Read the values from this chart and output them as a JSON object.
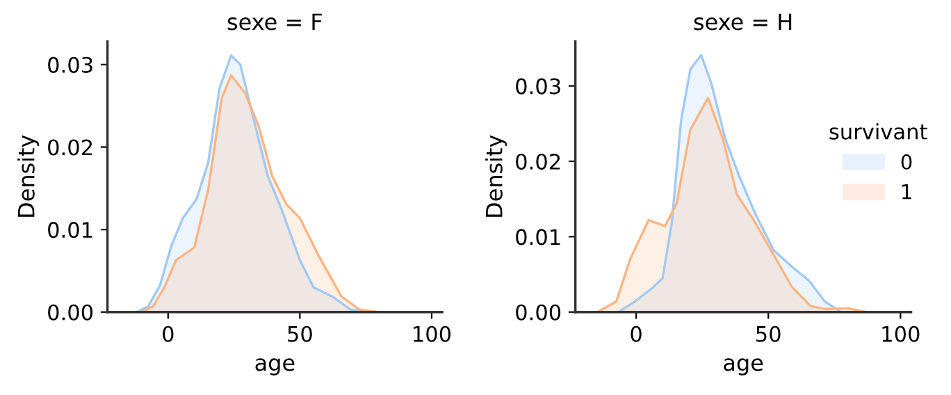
{
  "chart_data": [
    {
      "type": "area",
      "title": "sexe = F",
      "xlabel": "age",
      "ylabel": "Density",
      "xlim": [
        -23,
        104
      ],
      "ylim": [
        0,
        0.0328
      ],
      "xticks": [
        0,
        50,
        100
      ],
      "yticks": [
        {
          "value": 0,
          "label": "0.00"
        },
        {
          "value": 0.01,
          "label": "0.01"
        },
        {
          "value": 0.02,
          "label": "0.02"
        },
        {
          "value": 0.03,
          "label": "0.03"
        }
      ],
      "grid": false,
      "legend": false,
      "series": [
        {
          "color": "#a1c9f4",
          "x": [
            -11.8,
            -7.5,
            -3,
            1.2,
            5.6,
            10.8,
            15.2,
            19.5,
            23.9,
            27.4,
            32.6,
            37.8,
            43,
            50,
            55.2,
            62.2,
            69.2,
            76
          ],
          "values": [
            0,
            0.0007,
            0.0033,
            0.008,
            0.0114,
            0.0137,
            0.0181,
            0.0271,
            0.0311,
            0.03,
            0.0232,
            0.0165,
            0.0125,
            0.0063,
            0.003,
            0.0019,
            0.0003,
            0
          ]
        },
        {
          "color": "#ffb482",
          "x": [
            -10,
            -5.7,
            -1.4,
            3,
            9.9,
            15.2,
            20.4,
            23.9,
            29.1,
            34.3,
            39.5,
            44.8,
            50,
            57,
            65.7,
            72.6,
            79.6
          ],
          "values": [
            0,
            0.0007,
            0.003,
            0.0063,
            0.0078,
            0.0148,
            0.026,
            0.0287,
            0.0266,
            0.0226,
            0.0165,
            0.0131,
            0.0114,
            0.0069,
            0.0019,
            0.0003,
            0
          ]
        }
      ]
    },
    {
      "type": "area",
      "title": "sexe = H",
      "xlabel": "age",
      "ylabel": "Density",
      "xlim": [
        -23,
        104
      ],
      "ylim": [
        0,
        0.0359
      ],
      "xticks": [
        0,
        50,
        100
      ],
      "yticks": [
        {
          "value": 0,
          "label": "0.00"
        },
        {
          "value": 0.01,
          "label": "0.01"
        },
        {
          "value": 0.02,
          "label": "0.02"
        },
        {
          "value": 0.03,
          "label": "0.03"
        }
      ],
      "grid": false,
      "legend": "right",
      "legend_title": "survivant",
      "series": [
        {
          "name": "0",
          "color": "#a1c9f4",
          "x": [
            -6.7,
            -0.5,
            6.5,
            10,
            13.5,
            17,
            20.5,
            24.6,
            28.4,
            33.7,
            38.9,
            45,
            52,
            59,
            65.3,
            71.4,
            76.7
          ],
          "values": [
            0,
            0.0014,
            0.0033,
            0.0045,
            0.0119,
            0.0254,
            0.0322,
            0.0341,
            0.0304,
            0.023,
            0.0181,
            0.0131,
            0.0082,
            0.006,
            0.0042,
            0.0014,
            0.0002
          ]
        },
        {
          "name": "1",
          "color": "#ffb482",
          "x": [
            -14.6,
            -7.5,
            -2.3,
            4.7,
            10.9,
            15.3,
            20.5,
            27.2,
            32.8,
            38.1,
            45,
            52,
            59,
            66,
            71.4,
            80.2,
            87.2
          ],
          "values": [
            0,
            0.0014,
            0.007,
            0.0122,
            0.0114,
            0.0144,
            0.0242,
            0.0284,
            0.023,
            0.0156,
            0.0119,
            0.0076,
            0.0033,
            0.0008,
            0.0004,
            0.0005,
            0
          ]
        }
      ]
    }
  ]
}
